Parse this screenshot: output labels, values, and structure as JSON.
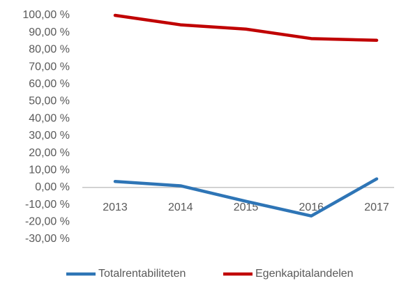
{
  "chart_data": {
    "type": "line",
    "categories": [
      "2013",
      "2014",
      "2015",
      "2016",
      "2017"
    ],
    "series": [
      {
        "name": "Totalrentabiliteten",
        "color": "#2e75b6",
        "values": [
          3.5,
          1,
          -8,
          -16.5,
          5
        ]
      },
      {
        "name": "Egenkapitalandelen",
        "color": "#c00000",
        "values": [
          100,
          94.5,
          92,
          86.5,
          85.5
        ]
      }
    ],
    "ylim": [
      -30,
      100
    ],
    "yticks": [
      {
        "value": -30,
        "label": "-30,00 %"
      },
      {
        "value": -20,
        "label": "-20,00 %"
      },
      {
        "value": -10,
        "label": "-10,00 %"
      },
      {
        "value": 0,
        "label": "0,00 %"
      },
      {
        "value": 10,
        "label": "10,00 %"
      },
      {
        "value": 20,
        "label": "20,00 %"
      },
      {
        "value": 30,
        "label": "30,00 %"
      },
      {
        "value": 40,
        "label": "40,00 %"
      },
      {
        "value": 50,
        "label": "50,00 %"
      },
      {
        "value": 60,
        "label": "60,00 %"
      },
      {
        "value": 70,
        "label": "70,00 %"
      },
      {
        "value": 80,
        "label": "80,00 %"
      },
      {
        "value": 90,
        "label": "90,00 %"
      },
      {
        "value": 100,
        "label": "100,00 %"
      }
    ],
    "legend": "bottom"
  }
}
